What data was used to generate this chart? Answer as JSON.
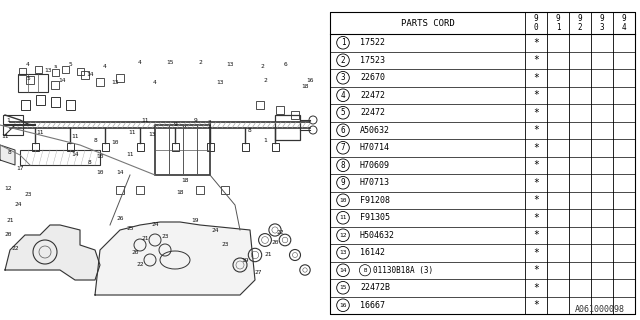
{
  "diagram_code": "A061000098",
  "table": {
    "rows": [
      {
        "num": 1,
        "part": "17522",
        "b_mark": false
      },
      {
        "num": 2,
        "part": "17523",
        "b_mark": false
      },
      {
        "num": 3,
        "part": "22670",
        "b_mark": false
      },
      {
        "num": 4,
        "part": "22472",
        "b_mark": false
      },
      {
        "num": 5,
        "part": "22472",
        "b_mark": false
      },
      {
        "num": 6,
        "part": "A50632",
        "b_mark": false
      },
      {
        "num": 7,
        "part": "H70714",
        "b_mark": false
      },
      {
        "num": 8,
        "part": "H70609",
        "b_mark": false
      },
      {
        "num": 9,
        "part": "H70713",
        "b_mark": false
      },
      {
        "num": 10,
        "part": "F91208",
        "b_mark": false
      },
      {
        "num": 11,
        "part": "F91305",
        "b_mark": false
      },
      {
        "num": 12,
        "part": "H504632",
        "b_mark": false
      },
      {
        "num": 13,
        "part": "16142",
        "b_mark": false
      },
      {
        "num": 14,
        "part": "01130B18A (3)",
        "b_mark": true
      },
      {
        "num": 15,
        "part": "22472B",
        "b_mark": false
      },
      {
        "num": 16,
        "part": "16667",
        "b_mark": false
      }
    ],
    "year_cols": [
      "9\n0",
      "9\n1",
      "9\n2",
      "9\n3",
      "9\n4"
    ]
  },
  "bg_color": "#ffffff",
  "line_color": "#000000",
  "gray_color": "#888888"
}
